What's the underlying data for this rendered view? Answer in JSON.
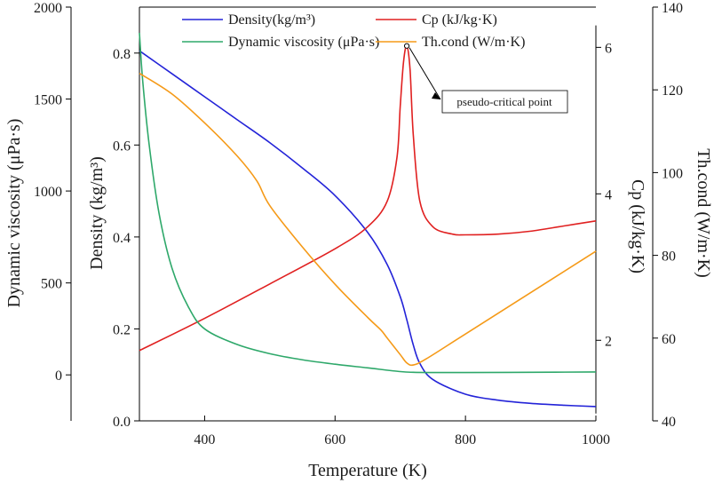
{
  "chart_data": {
    "type": "line",
    "xlabel": "Temperature (K)",
    "xlim": [
      300,
      1000
    ],
    "xticks": [
      400,
      600,
      800,
      1000
    ],
    "xtick_labels": [
      "400",
      "600",
      "800",
      "1000"
    ],
    "axes": {
      "visc": {
        "label": "Dynamic viscosity (μPa·s)",
        "range": [
          -250,
          2000
        ],
        "ticks": [
          0,
          500,
          1000,
          1500,
          2000
        ],
        "tick_labels": [
          "0",
          "500",
          "1000",
          "1500",
          "2000"
        ]
      },
      "dens": {
        "label": "Density (kg/m³)",
        "range": [
          0,
          0.9
        ],
        "ticks": [
          0,
          0.2,
          0.4,
          0.6,
          0.8
        ],
        "tick_labels": [
          "0.0",
          "0.2",
          "0.4",
          "0.6",
          "0.8"
        ]
      },
      "cp": {
        "label": "Cp (kJ/kg·K)",
        "range": [
          0.9,
          6.55
        ],
        "ticks": [
          2,
          4,
          6
        ],
        "tick_labels": [
          "2",
          "4",
          "6"
        ]
      },
      "tcond": {
        "label": "Th.cond (W/m·K)",
        "range": [
          40,
          140
        ],
        "ticks": [
          40,
          60,
          80,
          100,
          120,
          140
        ],
        "tick_labels": [
          "40",
          "60",
          "80",
          "100",
          "120",
          "140"
        ]
      }
    },
    "series": [
      {
        "name": "Density(kg/m³)",
        "axis": "dens",
        "color": "#2323d8",
        "x": [
          300,
          350,
          400,
          450,
          500,
          550,
          600,
          650,
          680,
          700,
          710,
          720,
          730,
          750,
          800,
          850,
          900,
          950,
          1000
        ],
        "y": [
          0.805,
          0.755,
          0.705,
          0.655,
          0.605,
          0.55,
          0.49,
          0.41,
          0.34,
          0.27,
          0.22,
          0.165,
          0.125,
          0.09,
          0.058,
          0.045,
          0.038,
          0.034,
          0.031
        ]
      },
      {
        "name": "Cp (kJ/kg·K)",
        "axis": "cp",
        "color": "#e02020",
        "x": [
          300,
          400,
          500,
          600,
          650,
          680,
          695,
          700,
          705,
          710,
          715,
          720,
          730,
          750,
          780,
          800,
          850,
          900,
          950,
          1000
        ],
        "y": [
          1.86,
          2.3,
          2.77,
          3.25,
          3.55,
          3.9,
          4.5,
          5.2,
          5.8,
          6.02,
          5.7,
          4.8,
          3.9,
          3.55,
          3.45,
          3.44,
          3.45,
          3.49,
          3.56,
          3.63
        ]
      },
      {
        "name": "Dynamic viscosity (μPa·s)",
        "axis": "visc",
        "color": "#2ea86a",
        "x": [
          300,
          305,
          315,
          330,
          350,
          375,
          400,
          450,
          500,
          550,
          600,
          650,
          700,
          720,
          750,
          800,
          900,
          1000
        ],
        "y": [
          1860,
          1600,
          1250,
          880,
          580,
          370,
          250,
          165,
          115,
          82,
          58,
          38,
          18,
          14,
          13,
          13,
          14,
          16
        ]
      },
      {
        "name": "Th.cond (W/m·K)",
        "axis": "tcond",
        "color": "#f59a18",
        "x": [
          300,
          350,
          400,
          450,
          480,
          500,
          550,
          600,
          650,
          670,
          680,
          700,
          710,
          720,
          740,
          800,
          900,
          1000
        ],
        "y": [
          124,
          119,
          112,
          104,
          98,
          92,
          82,
          73,
          65,
          62,
          60,
          56,
          54,
          53.5,
          55,
          61,
          71,
          81
        ]
      }
    ],
    "annotation": {
      "text": "pseudo-critical point",
      "x": 710,
      "y": 6.02,
      "axis": "cp"
    },
    "legend_position": "top"
  }
}
